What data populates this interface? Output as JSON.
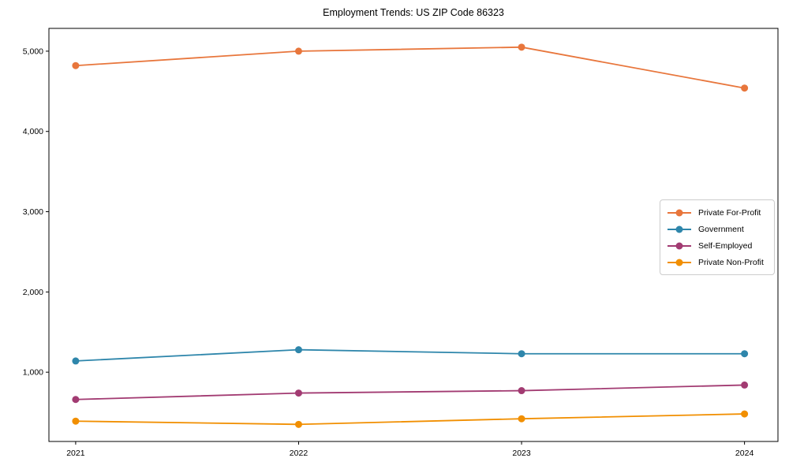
{
  "chart_data": {
    "type": "line",
    "title": "Employment Trends: US ZIP Code 86323",
    "x": [
      2021,
      2022,
      2023,
      2024
    ],
    "x_tick_labels": [
      "2021",
      "2022",
      "2023",
      "2024"
    ],
    "y_ticks": [
      1000,
      2000,
      3000,
      4000,
      5000
    ],
    "y_tick_labels": [
      "1,000",
      "2,000",
      "3,000",
      "4,000",
      "5,000"
    ],
    "series": [
      {
        "name": "Private For-Profit",
        "color": "#E8763C",
        "values": [
          4820,
          5000,
          5050,
          4540
        ]
      },
      {
        "name": "Government",
        "color": "#2E86AB",
        "values": [
          1140,
          1280,
          1230,
          1230
        ]
      },
      {
        "name": "Self-Employed",
        "color": "#A23B72",
        "values": [
          660,
          740,
          770,
          840
        ]
      },
      {
        "name": "Private Non-Profit",
        "color": "#F18F01",
        "values": [
          390,
          350,
          420,
          480
        ]
      }
    ],
    "xlabel": "",
    "ylabel": "",
    "xlim": [
      2020.88,
      2024.15
    ],
    "ylim": [
      137,
      5284
    ],
    "grid": false,
    "legend_position": "center-right",
    "marker": "circle",
    "axis_color": "#000000",
    "background": "#ffffff"
  }
}
